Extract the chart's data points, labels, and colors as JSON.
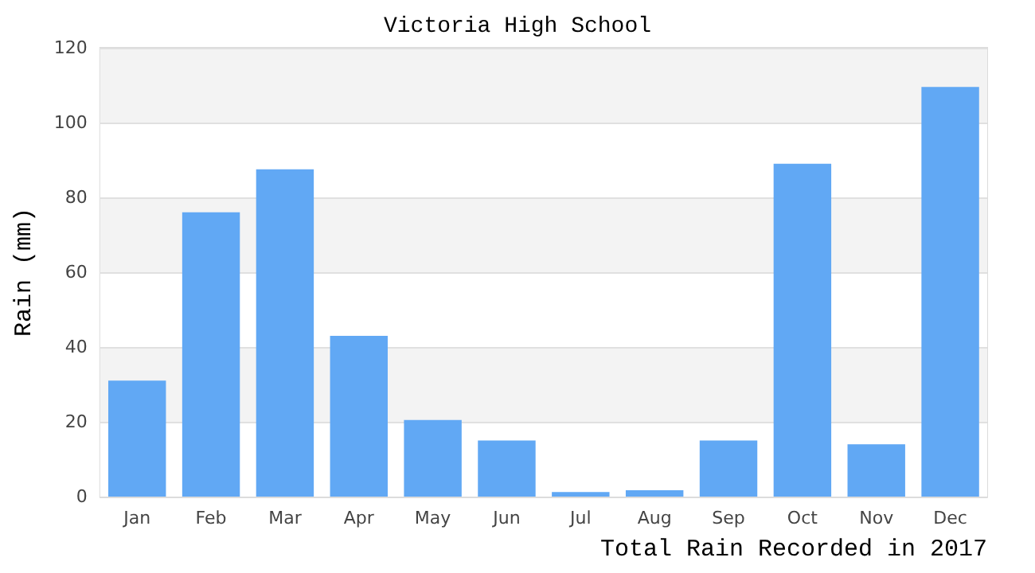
{
  "chart_data": {
    "type": "bar",
    "title": "Victoria High School",
    "xlabel": "Total Rain Recorded in 2017",
    "ylabel": "Rain (mm)",
    "categories": [
      "Jan",
      "Feb",
      "Mar",
      "Apr",
      "May",
      "Jun",
      "Jul",
      "Aug",
      "Sep",
      "Oct",
      "Nov",
      "Dec"
    ],
    "values": [
      31,
      76,
      87.5,
      43,
      20.5,
      15,
      1.2,
      1.7,
      15,
      89,
      14,
      109.5
    ],
    "color": "#61a8f4",
    "ylim": [
      0,
      120
    ],
    "yticks": [
      0,
      20,
      40,
      60,
      80,
      100,
      120
    ],
    "grid": "y"
  }
}
